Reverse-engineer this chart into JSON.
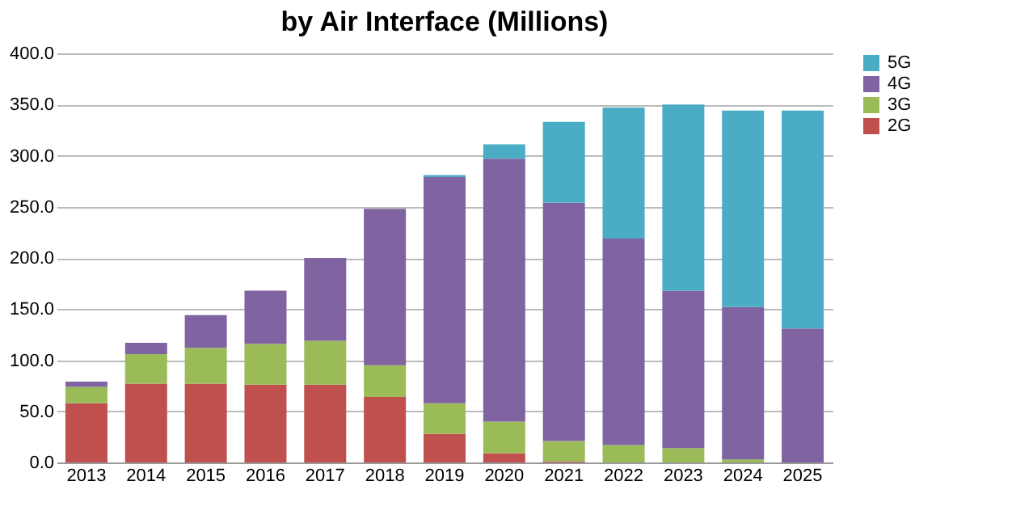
{
  "chart_data": {
    "type": "bar",
    "title": "by Air Interface (Millions)",
    "stacked": true,
    "categories": [
      "2013",
      "2014",
      "2015",
      "2016",
      "2017",
      "2018",
      "2019",
      "2020",
      "2021",
      "2022",
      "2023",
      "2024",
      "2025"
    ],
    "series": [
      {
        "name": "2G",
        "color": "#c0504d",
        "values": [
          58,
          77,
          77,
          76,
          76,
          64,
          28,
          9,
          1,
          0,
          0,
          0,
          0
        ]
      },
      {
        "name": "3G",
        "color": "#9bbb59",
        "values": [
          16,
          29,
          35,
          40,
          43,
          31,
          30,
          31,
          20,
          17,
          14,
          3,
          0
        ]
      },
      {
        "name": "4G",
        "color": "#8064a2",
        "values": [
          5,
          11,
          32,
          52,
          81,
          153,
          221,
          257,
          233,
          202,
          154,
          149,
          131
        ]
      },
      {
        "name": "5G",
        "color": "#4bacc6",
        "values": [
          0,
          0,
          0,
          0,
          0,
          0,
          2,
          14,
          79,
          128,
          182,
          192,
          213
        ]
      }
    ],
    "ylim": [
      0,
      400
    ],
    "yticks": [
      {
        "value": 0,
        "label": "0.0"
      },
      {
        "value": 50,
        "label": "50.0"
      },
      {
        "value": 100,
        "label": "100.0"
      },
      {
        "value": 150,
        "label": "150.0"
      },
      {
        "value": 200,
        "label": "200.0"
      },
      {
        "value": 250,
        "label": "250.0"
      },
      {
        "value": 300,
        "label": "300.0"
      },
      {
        "value": 350,
        "label": "350.0"
      },
      {
        "value": 400,
        "label": "400.0"
      }
    ],
    "grid": "y",
    "legend": "right"
  }
}
